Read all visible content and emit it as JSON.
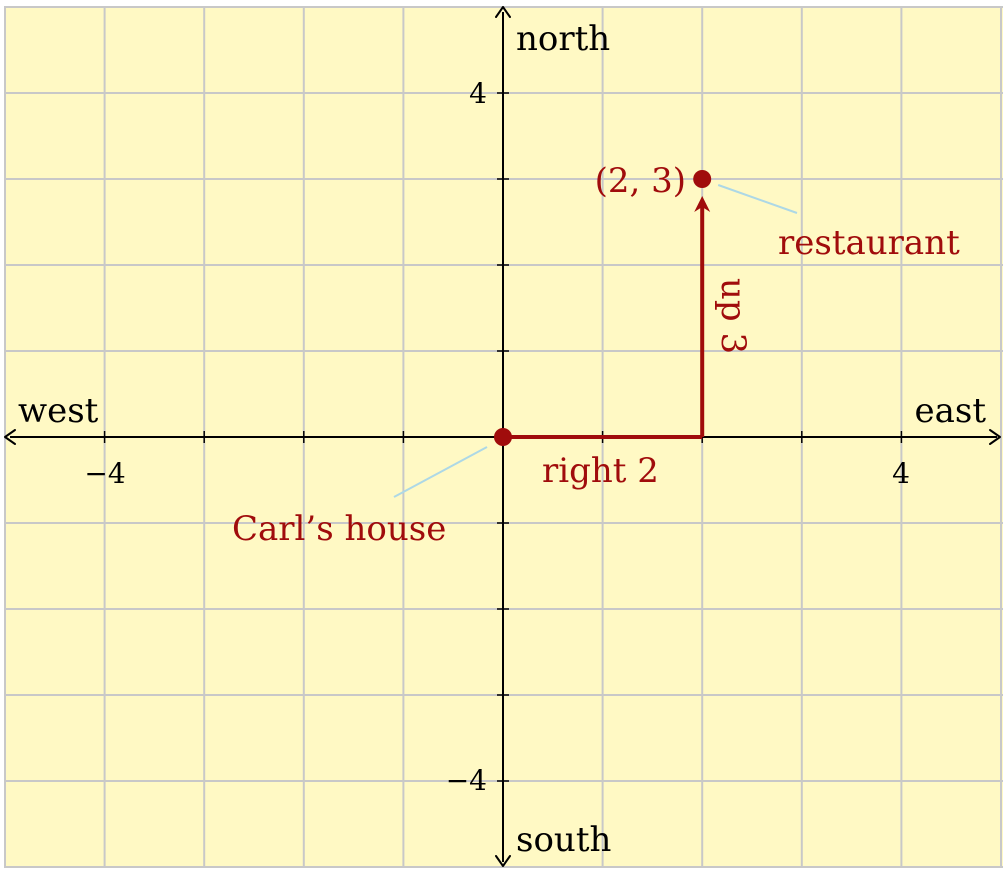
{
  "diagram": {
    "x_range": [
      -5,
      5
    ],
    "y_range": [
      -5,
      5
    ],
    "grid": true,
    "axis_labels": {
      "east": "east",
      "west": "west",
      "north": "north",
      "south": "south"
    },
    "ticks": {
      "x_values": [
        -4,
        4
      ],
      "x_labels": [
        "−4",
        "4"
      ],
      "y_values": [
        4,
        -4
      ],
      "y_labels": [
        "4",
        "−4"
      ]
    },
    "points": [
      {
        "x": 0,
        "y": 0,
        "label": "Carl’s house"
      },
      {
        "x": 2,
        "y": 3,
        "label": "restaurant",
        "coord_label": "(2, 3)"
      }
    ],
    "path_labels": {
      "horizontal": "right 2",
      "vertical": "up 3"
    },
    "colors": {
      "background": "#fff9c4",
      "grid": "#c8c8c8",
      "axis": "#000000",
      "path": "#a00c0c",
      "leader": "#add8e6"
    }
  }
}
